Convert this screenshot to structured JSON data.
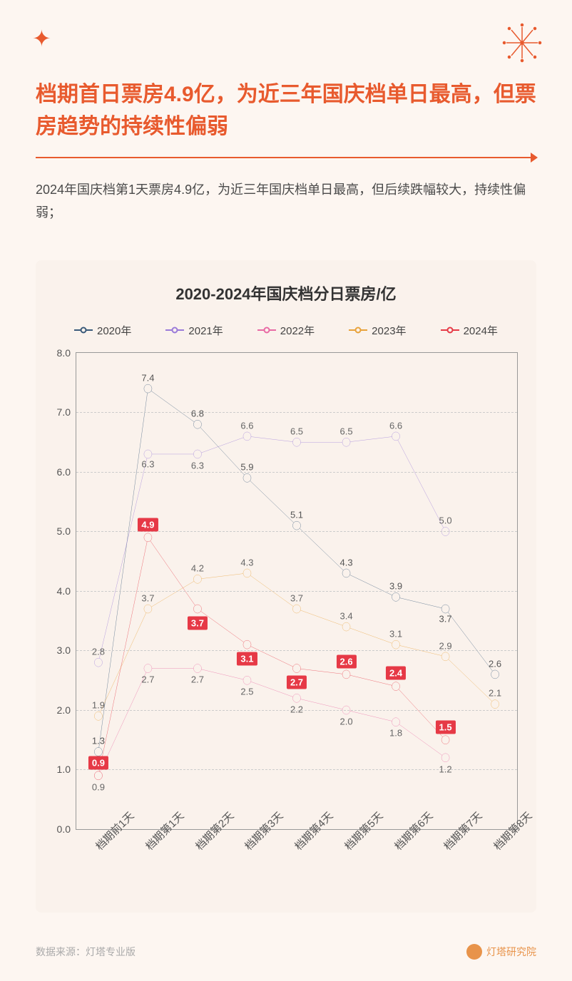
{
  "title": "档期首日票房4.9亿，为近三年国庆档单日最高，但票房趋势的持续性偏弱",
  "subtitle": "2024年国庆档第1天票房4.9亿，为近三年国庆档单日最高，但后续跌幅较大，持续性偏弱；",
  "chart": {
    "title": "2020-2024年国庆档分日票房/亿",
    "type": "line",
    "background": "#faf2ec",
    "grid_color": "#cccccc",
    "border_color": "#999999",
    "ylim": [
      0.0,
      8.0
    ],
    "ytick_step": 1.0,
    "yticks": [
      "0.0",
      "1.0",
      "2.0",
      "3.0",
      "4.0",
      "5.0",
      "6.0",
      "7.0",
      "8.0"
    ],
    "categories": [
      "档期前1天",
      "档期第1天",
      "档期第2天",
      "档期第3天",
      "档期第4天",
      "档期第5天",
      "档期第6天",
      "档期第7天",
      "档期第8天"
    ],
    "series": [
      {
        "name": "2020年",
        "color": "#3a5a7a",
        "values": [
          1.3,
          7.4,
          6.8,
          5.9,
          5.1,
          4.3,
          3.9,
          3.7,
          2.6
        ],
        "labels": [
          "1.3",
          "7.4",
          "6.8",
          "5.9",
          "5.1",
          "4.3",
          "3.9",
          "3.7",
          "2.6"
        ],
        "label_dy": [
          -15,
          -15,
          -15,
          -15,
          -15,
          -15,
          -15,
          14,
          -15
        ]
      },
      {
        "name": "2021年",
        "color": "#9a7ad9",
        "values": [
          2.8,
          6.3,
          6.3,
          6.6,
          6.5,
          6.5,
          6.6,
          5.0,
          null
        ],
        "labels": [
          "2.8",
          "6.3",
          "6.3",
          "6.6",
          "6.5",
          "6.5",
          "6.6",
          "5.0",
          ""
        ],
        "label_dy": [
          -15,
          14,
          16,
          -15,
          -15,
          -15,
          -15,
          -15,
          0
        ]
      },
      {
        "name": "2022年",
        "color": "#e86aa4",
        "values": [
          0.9,
          2.7,
          2.7,
          2.5,
          2.2,
          2.0,
          1.8,
          1.2,
          null
        ],
        "labels": [
          "0.9",
          "2.7",
          "2.7",
          "2.5",
          "2.2",
          "2.0",
          "1.8",
          "1.2",
          ""
        ],
        "label_dy": [
          16,
          16,
          16,
          16,
          16,
          16,
          16,
          16,
          0
        ]
      },
      {
        "name": "2023年",
        "color": "#e8a23a",
        "values": [
          1.9,
          3.7,
          4.2,
          4.3,
          3.7,
          3.4,
          3.1,
          2.9,
          2.1
        ],
        "labels": [
          "1.9",
          "3.7",
          "4.2",
          "4.3",
          "3.7",
          "3.4",
          "3.1",
          "2.9",
          "2.1"
        ],
        "label_dy": [
          -15,
          -15,
          -15,
          -15,
          -15,
          -15,
          -15,
          -15,
          -15
        ]
      },
      {
        "name": "2024年",
        "color": "#e63946",
        "values": [
          0.9,
          4.9,
          3.7,
          3.1,
          2.7,
          2.6,
          2.4,
          1.5,
          null
        ],
        "labels": [
          "0.9",
          "4.9",
          "3.7",
          "3.1",
          "2.7",
          "2.6",
          "2.4",
          "1.5",
          ""
        ],
        "boxed": true,
        "label_dy": [
          -18,
          -18,
          20,
          20,
          20,
          -18,
          -18,
          -18,
          0
        ]
      }
    ]
  },
  "footer": {
    "source": "数据来源：灯塔专业版",
    "brand": "灯塔研究院"
  }
}
